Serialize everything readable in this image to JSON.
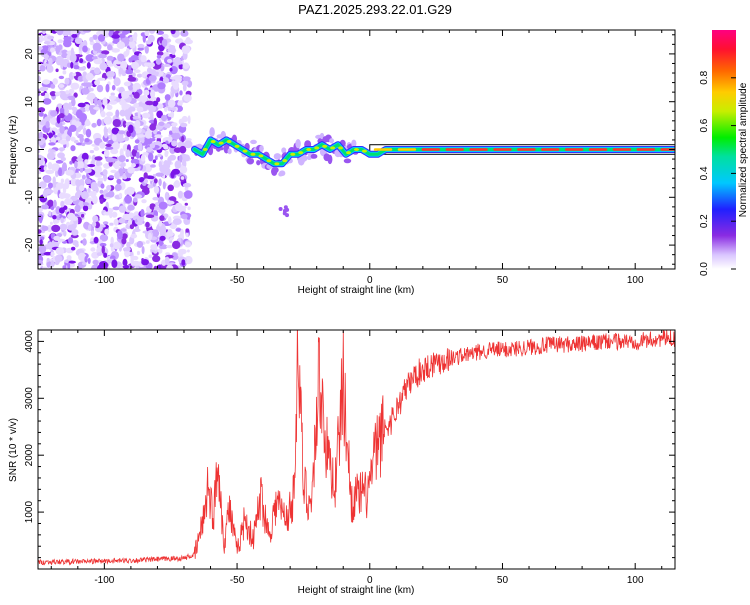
{
  "title": "PAZ1.2025.293.22.01.G29",
  "chart_data": [
    {
      "type": "heatmap",
      "name": "spectrogram",
      "xlabel": "Height of straight line (km)",
      "ylabel": "Frequency (Hz)",
      "xlim": [
        -125,
        115
      ],
      "ylim": [
        -25,
        25
      ],
      "xticks": [
        -100,
        -50,
        0,
        50,
        100
      ],
      "xtick_labels": [
        "-100",
        "-50",
        "0",
        "50",
        "100"
      ],
      "yticks": [
        -20,
        -10,
        0,
        10,
        20
      ],
      "ytick_labels": [
        "-20",
        "-10",
        "0",
        "10",
        "20"
      ],
      "ridge": {
        "x": [
          -66,
          -63,
          -60,
          -57,
          -54,
          -51,
          -48,
          -45,
          -42,
          -39,
          -36,
          -33,
          -30,
          -27,
          -24,
          -21,
          -18,
          -15,
          -12,
          -9,
          -6,
          -3,
          0,
          3,
          6,
          10,
          15,
          20,
          30,
          40,
          50,
          60,
          70,
          80,
          90,
          100,
          115
        ],
        "y": [
          0,
          -1,
          2,
          1,
          2,
          1,
          0,
          -1,
          -1,
          -2,
          -3,
          -3,
          -1,
          -1,
          0,
          0,
          1,
          0,
          1,
          -1,
          0,
          0,
          -1,
          -1,
          0,
          0,
          0,
          0,
          0,
          0,
          0,
          0,
          0,
          0,
          0,
          0,
          0
        ]
      },
      "noise_region_x": [
        -125,
        -68
      ],
      "colorbar": {
        "label": "Normalized spectral amplitude",
        "range": [
          0,
          1
        ],
        "ticks": [
          0.0,
          0.2,
          0.4,
          0.6,
          0.8
        ],
        "tick_labels": [
          "0.0",
          "0.2",
          "0.4",
          "0.6",
          "0.8"
        ]
      }
    },
    {
      "type": "line",
      "name": "snr",
      "xlabel": "Height of straight line (km)",
      "ylabel": "SNR (10 * v/v)",
      "xlim": [
        -125,
        115
      ],
      "ylim": [
        0,
        4200
      ],
      "xticks": [
        -100,
        -50,
        0,
        50,
        100
      ],
      "xtick_labels": [
        "-100",
        "-50",
        "0",
        "50",
        "100"
      ],
      "yticks": [
        1000,
        2000,
        3000,
        4000
      ],
      "ytick_labels": [
        "1000",
        "2000",
        "3000",
        "4000"
      ],
      "color": "#ee3333",
      "x": [
        -125,
        -110,
        -100,
        -90,
        -80,
        -70,
        -66,
        -63,
        -61,
        -59,
        -57,
        -55,
        -53,
        -50,
        -47,
        -44,
        -41,
        -38,
        -35,
        -32,
        -29,
        -27,
        -25,
        -22,
        -19,
        -16,
        -13,
        -10,
        -7,
        -4,
        -1,
        2,
        5,
        8,
        11,
        14,
        17,
        20,
        23,
        26,
        30,
        35,
        40,
        45,
        50,
        60,
        70,
        80,
        90,
        100,
        110,
        115
      ],
      "y": [
        120,
        130,
        140,
        150,
        170,
        190,
        250,
        800,
        1500,
        900,
        1900,
        400,
        1100,
        300,
        900,
        500,
        1300,
        600,
        1200,
        900,
        1100,
        3800,
        1500,
        1100,
        3500,
        2000,
        1500,
        3300,
        1200,
        1300,
        1300,
        2000,
        2400,
        2600,
        2900,
        3200,
        3400,
        3500,
        3600,
        3650,
        3700,
        3750,
        3800,
        3850,
        3850,
        3900,
        3950,
        3950,
        4000,
        4000,
        4050,
        4050
      ]
    }
  ]
}
